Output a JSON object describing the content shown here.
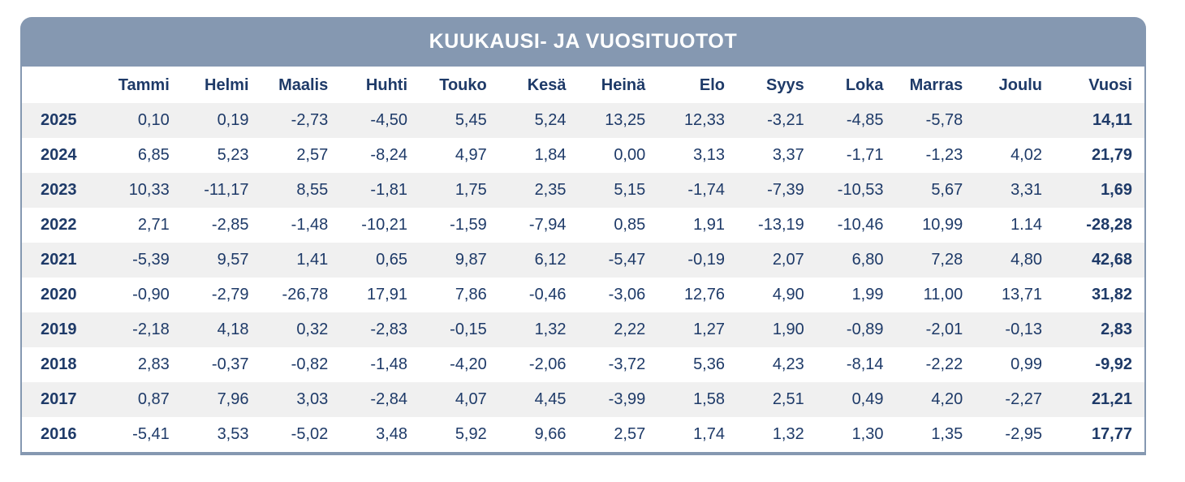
{
  "title": "KUUKAUSI- JA VUOSITUOTOT",
  "colors": {
    "header_bg": "#8598b1",
    "header_text": "#ffffff",
    "body_text": "#1e3a68",
    "stripe": "#f0f0f0",
    "border": "#8598b1",
    "background": "#ffffff"
  },
  "chart_data": {
    "type": "table",
    "title": "KUUKAUSI- JA VUOSITUOTOT",
    "columns": [
      "Tammi",
      "Helmi",
      "Maalis",
      "Huhti",
      "Touko",
      "Kesä",
      "Heinä",
      "Elo",
      "Syys",
      "Loka",
      "Marras",
      "Joulu",
      "Vuosi"
    ],
    "rows": [
      {
        "year": "2025",
        "values": [
          "0,10",
          "0,19",
          "-2,73",
          "-4,50",
          "5,45",
          "5,24",
          "13,25",
          "12,33",
          "-3,21",
          "-4,85",
          "-5,78",
          "",
          "14,11"
        ]
      },
      {
        "year": "2024",
        "values": [
          "6,85",
          "5,23",
          "2,57",
          "-8,24",
          "4,97",
          "1,84",
          "0,00",
          "3,13",
          "3,37",
          "-1,71",
          "-1,23",
          "4,02",
          "21,79"
        ]
      },
      {
        "year": "2023",
        "values": [
          "10,33",
          "-11,17",
          "8,55",
          "-1,81",
          "1,75",
          "2,35",
          "5,15",
          "-1,74",
          "-7,39",
          "-10,53",
          "5,67",
          "3,31",
          "1,69"
        ]
      },
      {
        "year": "2022",
        "values": [
          "2,71",
          "-2,85",
          "-1,48",
          "-10,21",
          "-1,59",
          "-7,94",
          "0,85",
          "1,91",
          "-13,19",
          "-10,46",
          "10,99",
          "1.14",
          "-28,28"
        ]
      },
      {
        "year": "2021",
        "values": [
          "-5,39",
          "9,57",
          "1,41",
          "0,65",
          "9,87",
          "6,12",
          "-5,47",
          "-0,19",
          "2,07",
          "6,80",
          "7,28",
          "4,80",
          "42,68"
        ]
      },
      {
        "year": "2020",
        "values": [
          "-0,90",
          "-2,79",
          "-26,78",
          "17,91",
          "7,86",
          "-0,46",
          "-3,06",
          "12,76",
          "4,90",
          "1,99",
          "11,00",
          "13,71",
          "31,82"
        ]
      },
      {
        "year": "2019",
        "values": [
          "-2,18",
          "4,18",
          "0,32",
          "-2,83",
          "-0,15",
          "1,32",
          "2,22",
          "1,27",
          "1,90",
          "-0,89",
          "-2,01",
          "-0,13",
          "2,83"
        ]
      },
      {
        "year": "2018",
        "values": [
          "2,83",
          "-0,37",
          "-0,82",
          "-1,48",
          "-4,20",
          "-2,06",
          "-3,72",
          "5,36",
          "4,23",
          "-8,14",
          "-2,22",
          "0,99",
          "-9,92"
        ]
      },
      {
        "year": "2017",
        "values": [
          "0,87",
          "7,96",
          "3,03",
          "-2,84",
          "4,07",
          "4,45",
          "-3,99",
          "1,58",
          "2,51",
          "0,49",
          "4,20",
          "-2,27",
          "21,21"
        ]
      },
      {
        "year": "2016",
        "values": [
          "-5,41",
          "3,53",
          "-5,02",
          "3,48",
          "5,92",
          "9,66",
          "2,57",
          "1,74",
          "1,32",
          "1,30",
          "1,35",
          "-2,95",
          "17,77"
        ]
      }
    ]
  }
}
